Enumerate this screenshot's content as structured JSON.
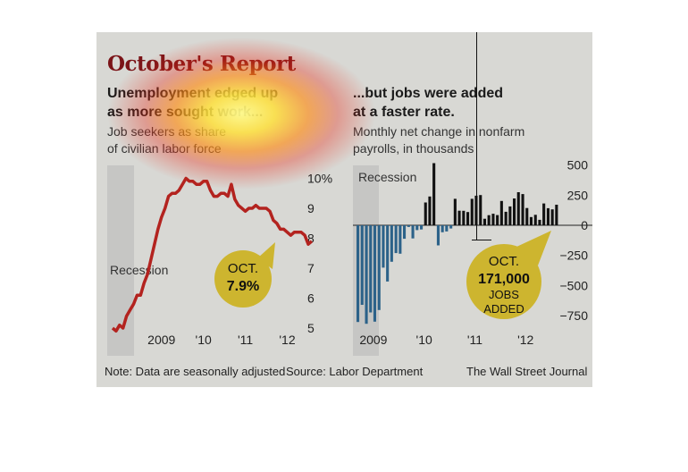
{
  "title": "October's Report",
  "left": {
    "headline_1": "Unemployment edged up",
    "headline_2": "as more sought work...",
    "desc_1": "Job seekers as share",
    "desc_2": "of civilian labor force",
    "callout_1": "OCT.",
    "callout_2": "7.9%",
    "recession_label": "Recession"
  },
  "right": {
    "headline_1": "...but jobs were added",
    "headline_2": "at a faster rate.",
    "desc_1": "Monthly net change in nonfarm",
    "desc_2": "payrolls, in thousands",
    "callout_1": "OCT.",
    "callout_2": "171,000",
    "callout_3": "JOBS",
    "callout_4": "ADDED",
    "recession_label": "Recession"
  },
  "footer": {
    "note": "Note: Data are seasonally adjusted",
    "source": "Source: Labor Department",
    "credit": "The Wall Street Journal"
  },
  "colors": {
    "unemployment_line": "#b3231f",
    "job_gain": "#111111",
    "job_loss": "#2c6289",
    "callout": "#cdb52f",
    "recession_band": "#c6c6c4"
  },
  "chart_data": [
    {
      "type": "line",
      "title": "Unemployment edged up as more sought work...",
      "subtitle": "Job seekers as share of civilian labor force",
      "x_ticks": [
        "2009",
        "'10",
        "'11",
        "'12"
      ],
      "y_ticks": [
        "10%",
        "9",
        "8",
        "7",
        "6",
        "5"
      ],
      "ylim": [
        5,
        10
      ],
      "recession": "2008-01 to 2009-06",
      "series": [
        {
          "x": [
            "2008-01",
            "2008-02",
            "2008-03",
            "2008-04",
            "2008-05",
            "2008-06",
            "2008-07",
            "2008-08",
            "2008-09",
            "2008-10",
            "2008-11",
            "2008-12",
            "2009-01",
            "2009-02",
            "2009-03",
            "2009-04",
            "2009-05",
            "2009-06",
            "2009-07",
            "2009-08",
            "2009-09",
            "2009-10",
            "2009-11",
            "2009-12",
            "2010-01",
            "2010-02",
            "2010-03",
            "2010-04",
            "2010-05",
            "2010-06",
            "2010-07",
            "2010-08",
            "2010-09",
            "2010-10",
            "2010-11",
            "2010-12",
            "2011-01",
            "2011-02",
            "2011-03",
            "2011-04",
            "2011-05",
            "2011-06",
            "2011-07",
            "2011-08",
            "2011-09",
            "2011-10",
            "2011-11",
            "2011-12",
            "2012-01",
            "2012-02",
            "2012-03",
            "2012-04",
            "2012-05",
            "2012-06",
            "2012-07",
            "2012-08",
            "2012-09",
            "2012-10"
          ],
          "values": [
            5.0,
            4.9,
            5.1,
            5.0,
            5.4,
            5.6,
            5.8,
            6.1,
            6.1,
            6.5,
            6.8,
            7.3,
            7.8,
            8.3,
            8.7,
            9.0,
            9.4,
            9.5,
            9.5,
            9.6,
            9.8,
            10.0,
            9.9,
            9.9,
            9.8,
            9.8,
            9.9,
            9.9,
            9.6,
            9.4,
            9.4,
            9.5,
            9.5,
            9.4,
            9.8,
            9.3,
            9.1,
            9.0,
            8.9,
            9.0,
            9.0,
            9.1,
            9.0,
            9.0,
            9.0,
            8.9,
            8.6,
            8.5,
            8.3,
            8.3,
            8.2,
            8.1,
            8.2,
            8.2,
            8.2,
            8.1,
            7.8,
            7.9
          ]
        }
      ],
      "annotation": "OCT. 7.9%"
    },
    {
      "type": "bar",
      "title": "...but jobs were added at a faster rate.",
      "subtitle": "Monthly net change in nonfarm payrolls, in thousands",
      "x_ticks": [
        "2009",
        "'10",
        "'11",
        "'12"
      ],
      "y_ticks": [
        "500",
        "250",
        "0",
        "−250",
        "−500",
        "−750"
      ],
      "ylim": [
        -860,
        520
      ],
      "recession": "2008-01 to 2009-06",
      "x": [
        "2008-11",
        "2008-12",
        "2009-01",
        "2009-02",
        "2009-03",
        "2009-04",
        "2009-05",
        "2009-06",
        "2009-07",
        "2009-08",
        "2009-09",
        "2009-10",
        "2009-11",
        "2009-12",
        "2010-01",
        "2010-02",
        "2010-03",
        "2010-04",
        "2010-05",
        "2010-06",
        "2010-07",
        "2010-08",
        "2010-09",
        "2010-10",
        "2010-11",
        "2010-12",
        "2011-01",
        "2011-02",
        "2011-03",
        "2011-04",
        "2011-05",
        "2011-06",
        "2011-07",
        "2011-08",
        "2011-09",
        "2011-10",
        "2011-11",
        "2011-12",
        "2012-01",
        "2012-02",
        "2012-03",
        "2012-04",
        "2012-05",
        "2012-06",
        "2012-07",
        "2012-08",
        "2012-09",
        "2012-10"
      ],
      "values": [
        -803,
        -661,
        -818,
        -724,
        -800,
        -704,
        -352,
        -467,
        -303,
        -231,
        -236,
        -112,
        -14,
        -109,
        -40,
        -35,
        189,
        239,
        516,
        -167,
        -58,
        -51,
        -27,
        220,
        121,
        120,
        110,
        220,
        246,
        251,
        54,
        84,
        96,
        85,
        202,
        112,
        157,
        223,
        275,
        259,
        143,
        68,
        87,
        45,
        181,
        142,
        132,
        171
      ],
      "annotation": "OCT. 171,000 JOBS ADDED"
    }
  ]
}
